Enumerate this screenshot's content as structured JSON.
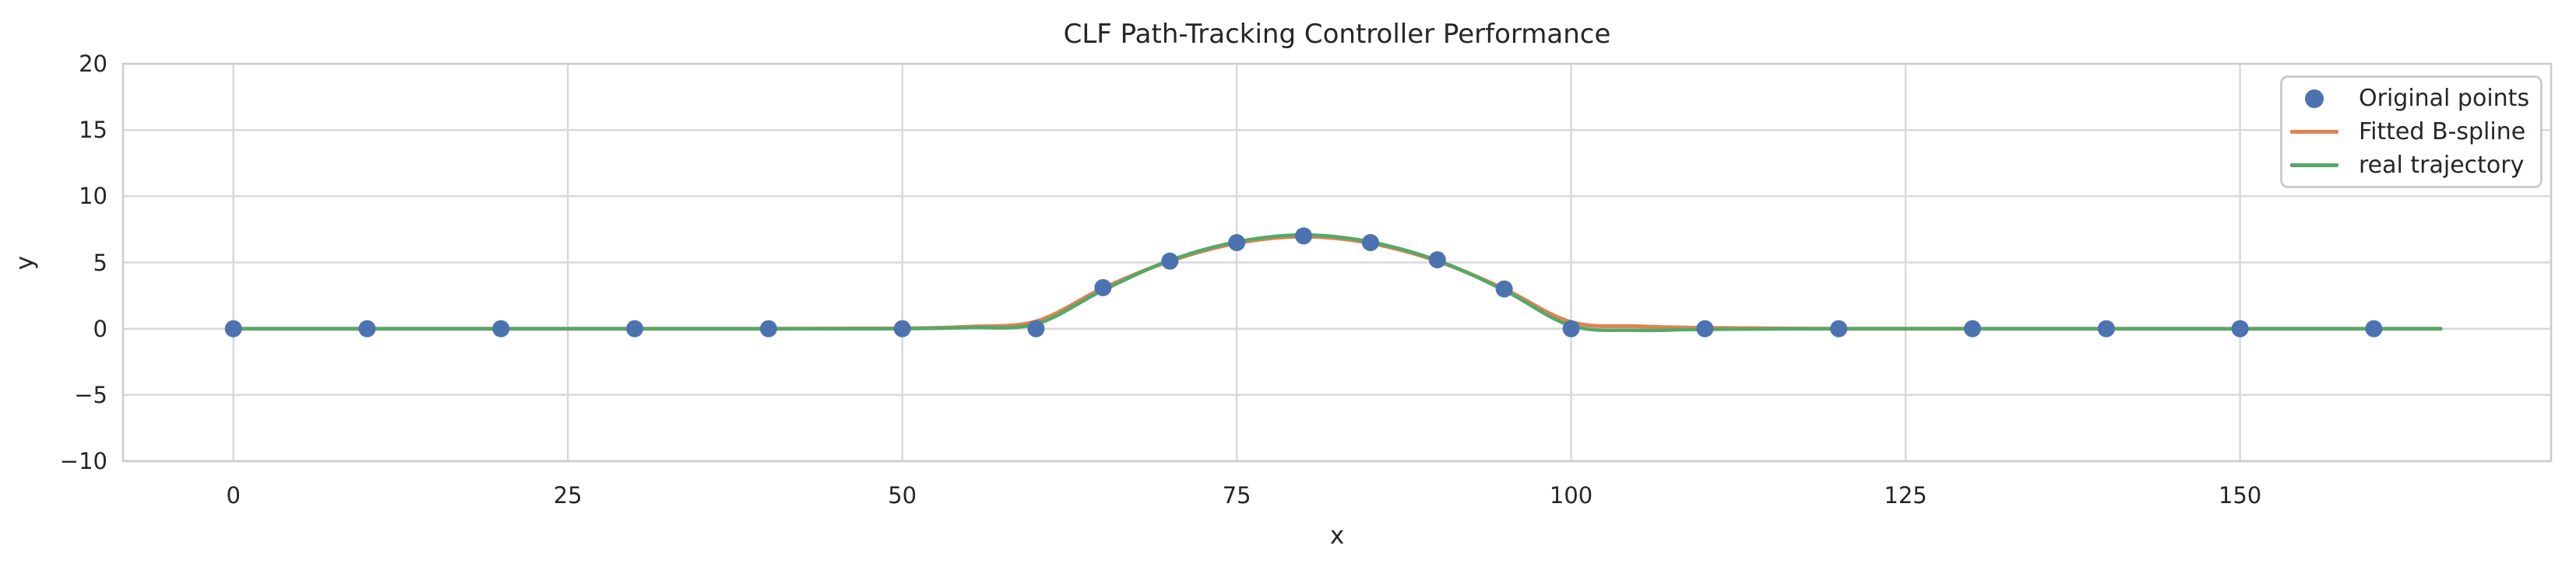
{
  "figure": {
    "background": "#ffffff",
    "grid_color": "#d9d9d9",
    "spine_color": "#cccccc",
    "text_color": "#262626"
  },
  "chart_data": {
    "type": "line",
    "title": "CLF Path-Tracking Controller Performance",
    "xlabel": "x",
    "ylabel": "y",
    "xlim": [
      -8.25,
      173.25
    ],
    "ylim": [
      -10,
      20
    ],
    "xticks": [
      0,
      25,
      50,
      75,
      100,
      125,
      150
    ],
    "yticks": [
      -10,
      -5,
      0,
      5,
      10,
      15,
      20
    ],
    "grid": true,
    "legend": {
      "position": "upper right",
      "entries": [
        "Original points",
        "Fitted B-spline",
        "real trajectory"
      ]
    },
    "series": [
      {
        "name": "Original points",
        "type": "scatter",
        "color": "#4C72B0",
        "marker": "circle",
        "x": [
          0,
          10,
          20,
          30,
          40,
          50,
          60,
          65,
          70,
          75,
          80,
          85,
          90,
          95,
          100,
          110,
          120,
          130,
          140,
          150,
          160
        ],
        "y": [
          0,
          0,
          0,
          0,
          0,
          0,
          0,
          3.1,
          5.1,
          6.5,
          7.0,
          6.5,
          5.2,
          3.0,
          0,
          0,
          0,
          0,
          0,
          0,
          0
        ]
      },
      {
        "name": "Fitted B-spline",
        "type": "line",
        "color": "#DD8452",
        "x": [
          0,
          10,
          20,
          30,
          40,
          50,
          55,
          60,
          65,
          70,
          75,
          80,
          85,
          90,
          95,
          100,
          105,
          110,
          120,
          130,
          140,
          150,
          160,
          165
        ],
        "y": [
          0,
          0,
          0,
          0,
          0,
          0.02,
          0.15,
          0.55,
          3.05,
          5.1,
          6.45,
          6.95,
          6.45,
          5.1,
          3.0,
          0.5,
          0.18,
          0.06,
          0,
          0,
          0,
          0,
          0,
          0
        ]
      },
      {
        "name": "real trajectory",
        "type": "line",
        "color": "#55A868",
        "x": [
          0,
          10,
          20,
          30,
          40,
          50,
          55,
          60,
          65,
          70,
          75,
          80,
          85,
          90,
          95,
          100,
          105,
          110,
          120,
          130,
          140,
          150,
          160,
          165
        ],
        "y": [
          0,
          0,
          0,
          0,
          0,
          0,
          0.08,
          0.35,
          2.9,
          5.15,
          6.55,
          7.08,
          6.55,
          5.15,
          2.9,
          0.22,
          -0.12,
          -0.05,
          0,
          0,
          0,
          0,
          0,
          0
        ]
      }
    ]
  }
}
